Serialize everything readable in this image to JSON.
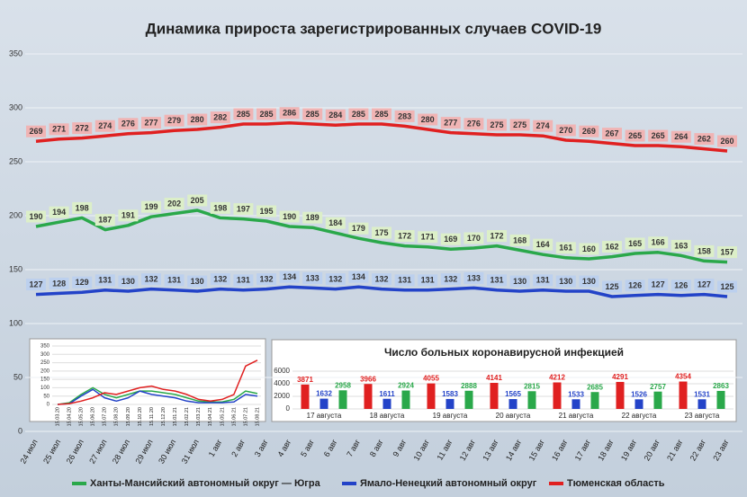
{
  "chart_data": [
    {
      "type": "line",
      "title": "Динамика прироста зарегистрированных случаев COVID-19",
      "categories": [
        "24 июл",
        "25 июл",
        "26 июл",
        "27 июл",
        "28 июл",
        "29 июл",
        "30 июл",
        "31 июл",
        "1 авг",
        "2 авг",
        "3 авг",
        "4 авг",
        "5 авг",
        "6 авг",
        "7 авг",
        "8 авг",
        "9 авг",
        "10 авг",
        "11 авг",
        "12 авг",
        "13 авг",
        "14 авг",
        "15 авг",
        "16 авг",
        "17 авг",
        "18 авг",
        "19 авг",
        "20 авг",
        "21 авг",
        "22 авг",
        "23 авг"
      ],
      "series": [
        {
          "name": "Ханты-Мансийский автономный округ — Югра",
          "color": "#2aa84a",
          "label_fill": "#dcefc8",
          "values": [
            190,
            194,
            198,
            187,
            191,
            199,
            202,
            205,
            198,
            197,
            195,
            190,
            189,
            184,
            179,
            175,
            172,
            171,
            169,
            170,
            172,
            168,
            164,
            161,
            160,
            162,
            165,
            166,
            163,
            158,
            157
          ]
        },
        {
          "name": "Ямало-Ненецкий автономный округ",
          "color": "#2343c8",
          "label_fill": "#bcd0ee",
          "values": [
            127,
            128,
            129,
            131,
            130,
            132,
            131,
            130,
            132,
            131,
            132,
            134,
            133,
            132,
            134,
            132,
            131,
            131,
            132,
            133,
            131,
            130,
            131,
            130,
            130,
            125,
            126,
            127,
            126,
            127,
            125
          ]
        },
        {
          "name": "Тюменская область",
          "color": "#e02020",
          "label_fill": "#f0b4b4",
          "values": [
            269,
            271,
            272,
            274,
            276,
            277,
            279,
            280,
            282,
            285,
            285,
            286,
            285,
            284,
            285,
            285,
            283,
            280,
            277,
            276,
            275,
            275,
            274,
            270,
            269,
            267,
            265,
            265,
            264,
            262,
            260
          ]
        }
      ],
      "ylim": [
        0,
        350
      ],
      "yticks": [
        0,
        50,
        100,
        150,
        200,
        250,
        300,
        350
      ],
      "grid": true,
      "legend": "bottom"
    },
    {
      "type": "line",
      "categories": [
        "15.03.20",
        "15.04.20",
        "15.05.20",
        "15.06.20",
        "15.07.20",
        "15.08.20",
        "15.09.20",
        "15.10.20",
        "15.11.20",
        "15.12.20",
        "15.01.21",
        "15.02.21",
        "15.03.21",
        "15.04.21",
        "15.05.21",
        "15.06.21",
        "15.07.21",
        "15.08.21"
      ],
      "series": [
        {
          "color": "#2aa84a",
          "values": [
            0,
            10,
            60,
            100,
            60,
            40,
            60,
            80,
            80,
            70,
            60,
            40,
            20,
            15,
            15,
            30,
            80,
            65
          ]
        },
        {
          "color": "#2343c8",
          "values": [
            0,
            5,
            50,
            90,
            40,
            20,
            40,
            80,
            60,
            50,
            40,
            20,
            10,
            10,
            10,
            15,
            60,
            50
          ]
        },
        {
          "color": "#e02020",
          "values": [
            0,
            5,
            20,
            40,
            70,
            60,
            80,
            100,
            110,
            90,
            80,
            60,
            30,
            20,
            30,
            60,
            230,
            265
          ]
        }
      ],
      "ylim": [
        0,
        350
      ],
      "yticks": [
        0,
        50,
        100,
        150,
        200,
        250,
        300,
        350
      ],
      "grid": true
    },
    {
      "type": "bar",
      "title": "Число больных коронавирусной инфекцией",
      "categories": [
        "17 августа",
        "18 августа",
        "19 августа",
        "20 августа",
        "21 августа",
        "22 августа",
        "23 августа"
      ],
      "series": [
        {
          "color": "#e02020",
          "values": [
            3871,
            3966,
            4055,
            4141,
            4212,
            4291,
            4354
          ]
        },
        {
          "color": "#2343c8",
          "values": [
            1632,
            1611,
            1583,
            1565,
            1533,
            1526,
            1531
          ]
        },
        {
          "color": "#2aa84a",
          "values": [
            2958,
            2924,
            2888,
            2815,
            2685,
            2757,
            2863
          ]
        }
      ],
      "ylim": [
        0,
        6000
      ],
      "yticks": [
        0,
        2000,
        4000,
        6000
      ],
      "grid": true
    }
  ]
}
